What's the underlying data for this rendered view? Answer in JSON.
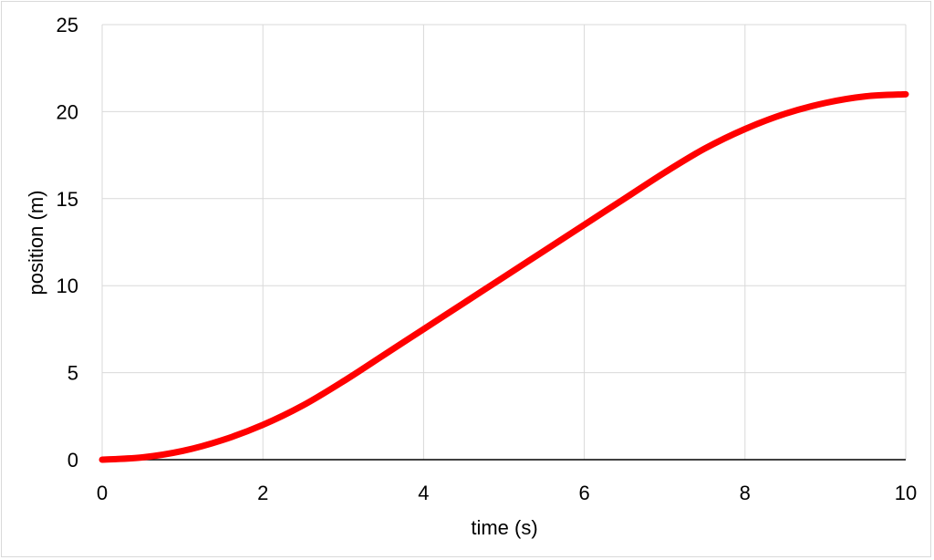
{
  "chart_data": {
    "type": "line",
    "title": "",
    "xlabel": "time (s)",
    "ylabel": "position (m)",
    "xlim": [
      0,
      10
    ],
    "ylim": [
      0,
      25
    ],
    "x_ticks": [
      0,
      2,
      4,
      6,
      8,
      10
    ],
    "y_ticks": [
      0,
      5,
      10,
      15,
      20,
      25
    ],
    "x_tick_labels": [
      "0",
      "2",
      "4",
      "6",
      "8",
      "10"
    ],
    "y_tick_labels": [
      "0",
      "5",
      "10",
      "15",
      "20",
      "25"
    ],
    "grid": true,
    "legend": "none",
    "series": [
      {
        "color": "#ff0000",
        "x": [
          0,
          0.5,
          1,
          1.5,
          2,
          2.5,
          3,
          3.5,
          4,
          4.5,
          5,
          5.5,
          6,
          6.5,
          7,
          7.5,
          8,
          8.5,
          9,
          9.5,
          10
        ],
        "y": [
          0,
          0.13,
          0.5,
          1.13,
          2,
          3.12,
          4.5,
          6,
          7.5,
          9,
          10.5,
          12,
          13.5,
          15,
          16.5,
          17.88,
          19,
          19.88,
          20.5,
          20.88,
          21
        ]
      }
    ]
  }
}
